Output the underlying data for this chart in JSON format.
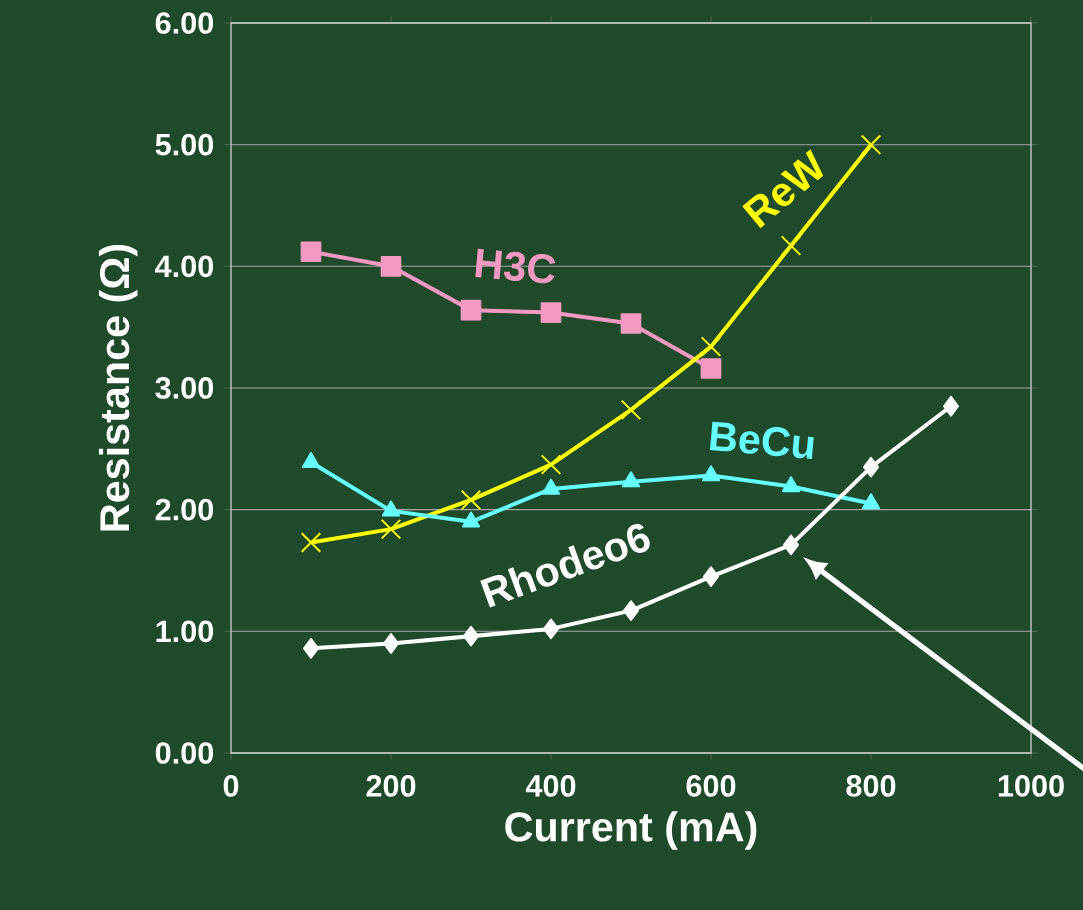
{
  "chart_data": {
    "type": "line",
    "xlabel": "Current   (mA)",
    "ylabel": "Resistance  (Ω)",
    "x": [
      100,
      200,
      300,
      400,
      500,
      600,
      700,
      800,
      900
    ],
    "series": [
      {
        "name": "H3C",
        "color": "#f49ac1",
        "marker": "square",
        "values": [
          4.12,
          4.0,
          3.64,
          3.62,
          3.53,
          3.16,
          null,
          null,
          null
        ]
      },
      {
        "name": "ReW",
        "color": "#ffff00",
        "marker": "cross",
        "values": [
          1.73,
          1.84,
          2.08,
          2.37,
          2.82,
          3.34,
          4.17,
          5.0,
          null
        ]
      },
      {
        "name": "BeCu",
        "color": "#66ffff",
        "marker": "triangle",
        "values": [
          2.39,
          1.99,
          1.9,
          2.17,
          2.23,
          2.28,
          2.19,
          2.05,
          null
        ]
      },
      {
        "name": "Rhodeo6",
        "color": "#ffffff",
        "marker": "diamond",
        "values": [
          0.86,
          0.9,
          0.96,
          1.02,
          1.17,
          1.45,
          1.71,
          2.35,
          2.85
        ]
      }
    ],
    "xlim": [
      0,
      1000
    ],
    "xticks": [
      0,
      200,
      400,
      600,
      800,
      1000
    ],
    "ylim": [
      0,
      6
    ],
    "yticks": [
      {
        "value": 0,
        "label": "0.00"
      },
      {
        "value": 1,
        "label": "1.00"
      },
      {
        "value": 2,
        "label": "2.00"
      },
      {
        "value": 3,
        "label": "3.00"
      },
      {
        "value": 4,
        "label": "4.00"
      },
      {
        "value": 5,
        "label": "5.00"
      },
      {
        "value": 6,
        "label": "6.00"
      }
    ],
    "grid": "y",
    "line_style": "solid"
  }
}
